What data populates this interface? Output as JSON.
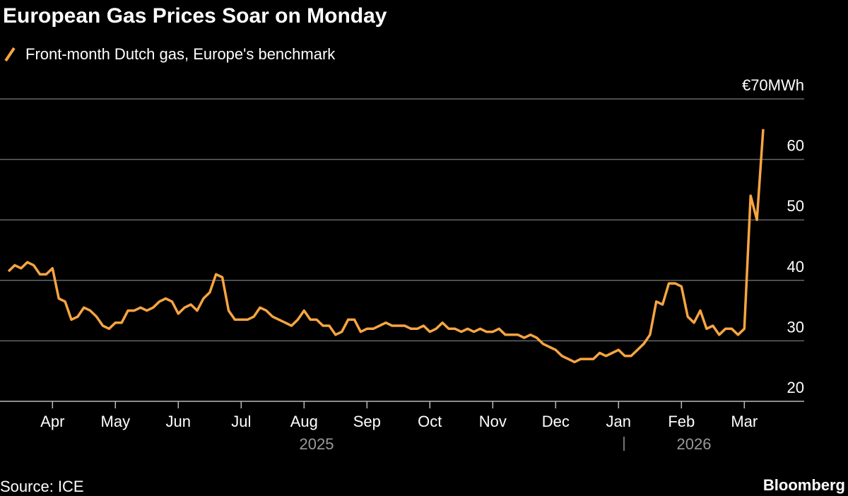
{
  "chart_data": {
    "type": "line",
    "title": "European Gas Prices Soar on Monday",
    "source": "Source: ICE",
    "brand": "Bloomberg",
    "categories": [
      null,
      null,
      null,
      null,
      null,
      null,
      null,
      "Apr",
      null,
      null,
      null,
      null,
      null,
      null,
      null,
      null,
      null,
      "May",
      null,
      null,
      null,
      null,
      null,
      null,
      null,
      null,
      null,
      "Jun",
      null,
      null,
      null,
      null,
      null,
      null,
      null,
      null,
      null,
      "Jul",
      null,
      null,
      null,
      null,
      null,
      null,
      null,
      null,
      null,
      "Aug",
      null,
      null,
      null,
      null,
      null,
      null,
      null,
      null,
      null,
      "Sep",
      null,
      null,
      null,
      null,
      null,
      null,
      null,
      null,
      null,
      "Oct",
      null,
      null,
      null,
      null,
      null,
      null,
      null,
      null,
      null,
      "Nov",
      null,
      null,
      null,
      null,
      null,
      null,
      null,
      null,
      null,
      "Dec",
      null,
      null,
      null,
      null,
      null,
      null,
      null,
      null,
      null,
      "Jan",
      null,
      null,
      null,
      null,
      null,
      null,
      null,
      null,
      null,
      "Feb",
      null,
      null,
      null,
      null,
      null,
      null,
      null,
      null,
      null,
      "Mar",
      null,
      null,
      null
    ],
    "years": [
      "2025",
      "2026"
    ],
    "series": [
      {
        "name": "Front-month Dutch gas, Europe's benchmark",
        "color": "#f7a541",
        "values": [
          41.5,
          42.5,
          42,
          43,
          42.5,
          41,
          41,
          42,
          37,
          36.5,
          33.5,
          34,
          35.5,
          35,
          34,
          32.5,
          32,
          33,
          33,
          35,
          35,
          35.5,
          35,
          35.5,
          36.5,
          37,
          36.5,
          34.5,
          35.5,
          36,
          35,
          37,
          38,
          41,
          40.5,
          35,
          33.5,
          33.5,
          33.5,
          34,
          35.5,
          35,
          34,
          33.5,
          33,
          32.5,
          33.5,
          35,
          33.5,
          33.5,
          32.5,
          32.5,
          31,
          31.5,
          33.5,
          33.5,
          31.5,
          32,
          32,
          32.5,
          33,
          32.5,
          32.5,
          32.5,
          32,
          32,
          32.5,
          31.5,
          32,
          33,
          32,
          32,
          31.5,
          32,
          31.5,
          32,
          31.5,
          31.5,
          32,
          31,
          31,
          31,
          30.5,
          31,
          30.5,
          29.5,
          29,
          28.5,
          27.5,
          27,
          26.5,
          27,
          27,
          27,
          28,
          27.5,
          28,
          28.5,
          27.5,
          27.5,
          28.5,
          29.5,
          31,
          36.5,
          36,
          39.5,
          39.5,
          39,
          34,
          33,
          35,
          32,
          32.5,
          31,
          32,
          32,
          31,
          32,
          54,
          50,
          65
        ]
      }
    ],
    "ylim": [
      20,
      70
    ],
    "yticks": [
      20,
      30,
      40,
      50,
      60,
      {
        "value": 70,
        "label": "€70MWh"
      }
    ],
    "grid": true
  }
}
